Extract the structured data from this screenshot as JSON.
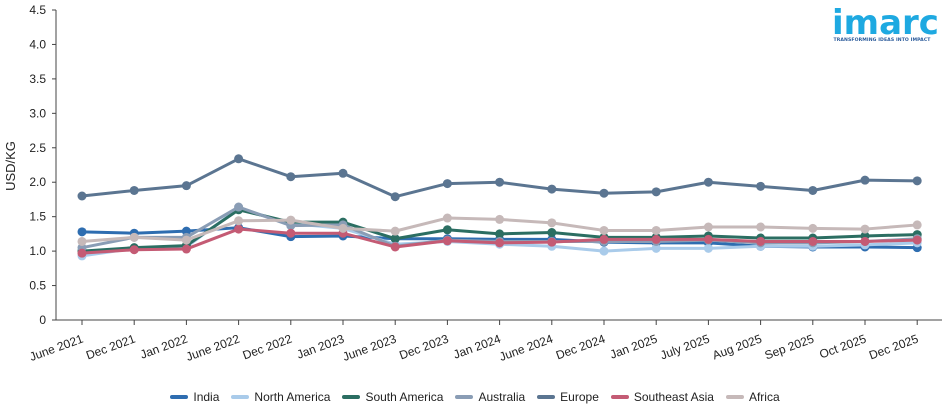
{
  "logo": {
    "word": "imarc",
    "tagline": "TRANSFORMING IDEAS INTO IMPACT",
    "color": "#1ea9e1"
  },
  "chart_data": {
    "type": "line",
    "ylabel": "USD/KG",
    "xlabel": "",
    "ylim": [
      0,
      4.5
    ],
    "yticks": [
      "0",
      "0.5",
      "1.0",
      "1.5",
      "2.0",
      "2.5",
      "3.0",
      "3.5",
      "4.0",
      "4.5"
    ],
    "categories": [
      "June 2021",
      "Dec 2021",
      "Jan 2022",
      "June 2022",
      "Dec 2022",
      "Jan 2023",
      "June 2023",
      "Dec 2023",
      "Jan 2024",
      "June 2024",
      "Dec 2024",
      "Jan 2025",
      "July 2025",
      "Aug 2025",
      "Sep 2025",
      "Oct 2025",
      "Dec 2025"
    ],
    "legend_position": "bottom",
    "grid": false,
    "series": [
      {
        "name": "India",
        "color": "#2e6db0",
        "values": [
          1.28,
          1.26,
          1.29,
          1.34,
          1.21,
          1.22,
          1.18,
          1.18,
          1.17,
          1.17,
          1.13,
          1.12,
          1.12,
          1.07,
          1.06,
          1.06,
          1.05
        ]
      },
      {
        "name": "North America",
        "color": "#a9cbea",
        "values": [
          0.93,
          1.04,
          1.06,
          1.62,
          1.4,
          1.33,
          1.1,
          1.14,
          1.1,
          1.07,
          1.0,
          1.04,
          1.04,
          1.07,
          1.07,
          1.09,
          1.12
        ]
      },
      {
        "name": "South America",
        "color": "#2b6e62",
        "values": [
          1.0,
          1.05,
          1.08,
          1.6,
          1.42,
          1.42,
          1.18,
          1.31,
          1.25,
          1.27,
          1.2,
          1.2,
          1.22,
          1.19,
          1.19,
          1.22,
          1.24
        ]
      },
      {
        "name": "Australia",
        "color": "#8a9db5",
        "values": [
          1.05,
          1.2,
          1.2,
          1.64,
          1.37,
          1.38,
          1.07,
          1.16,
          1.14,
          1.14,
          1.14,
          1.14,
          1.16,
          1.12,
          1.12,
          1.14,
          1.18
        ]
      },
      {
        "name": "Europe",
        "color": "#5b7591",
        "values": [
          1.8,
          1.88,
          1.95,
          2.34,
          2.08,
          2.13,
          1.79,
          1.98,
          2.0,
          1.9,
          1.84,
          1.86,
          2.0,
          1.94,
          1.88,
          2.03,
          2.02
        ]
      },
      {
        "name": "Southeast Asia",
        "color": "#c45b74",
        "values": [
          0.97,
          1.02,
          1.03,
          1.32,
          1.26,
          1.26,
          1.06,
          1.15,
          1.12,
          1.13,
          1.17,
          1.17,
          1.17,
          1.14,
          1.14,
          1.14,
          1.16
        ]
      },
      {
        "name": "Africa",
        "color": "#c6b9b9",
        "values": [
          1.14,
          1.2,
          1.16,
          1.44,
          1.45,
          1.33,
          1.29,
          1.48,
          1.46,
          1.41,
          1.3,
          1.3,
          1.35,
          1.35,
          1.33,
          1.32,
          1.38
        ]
      }
    ]
  }
}
